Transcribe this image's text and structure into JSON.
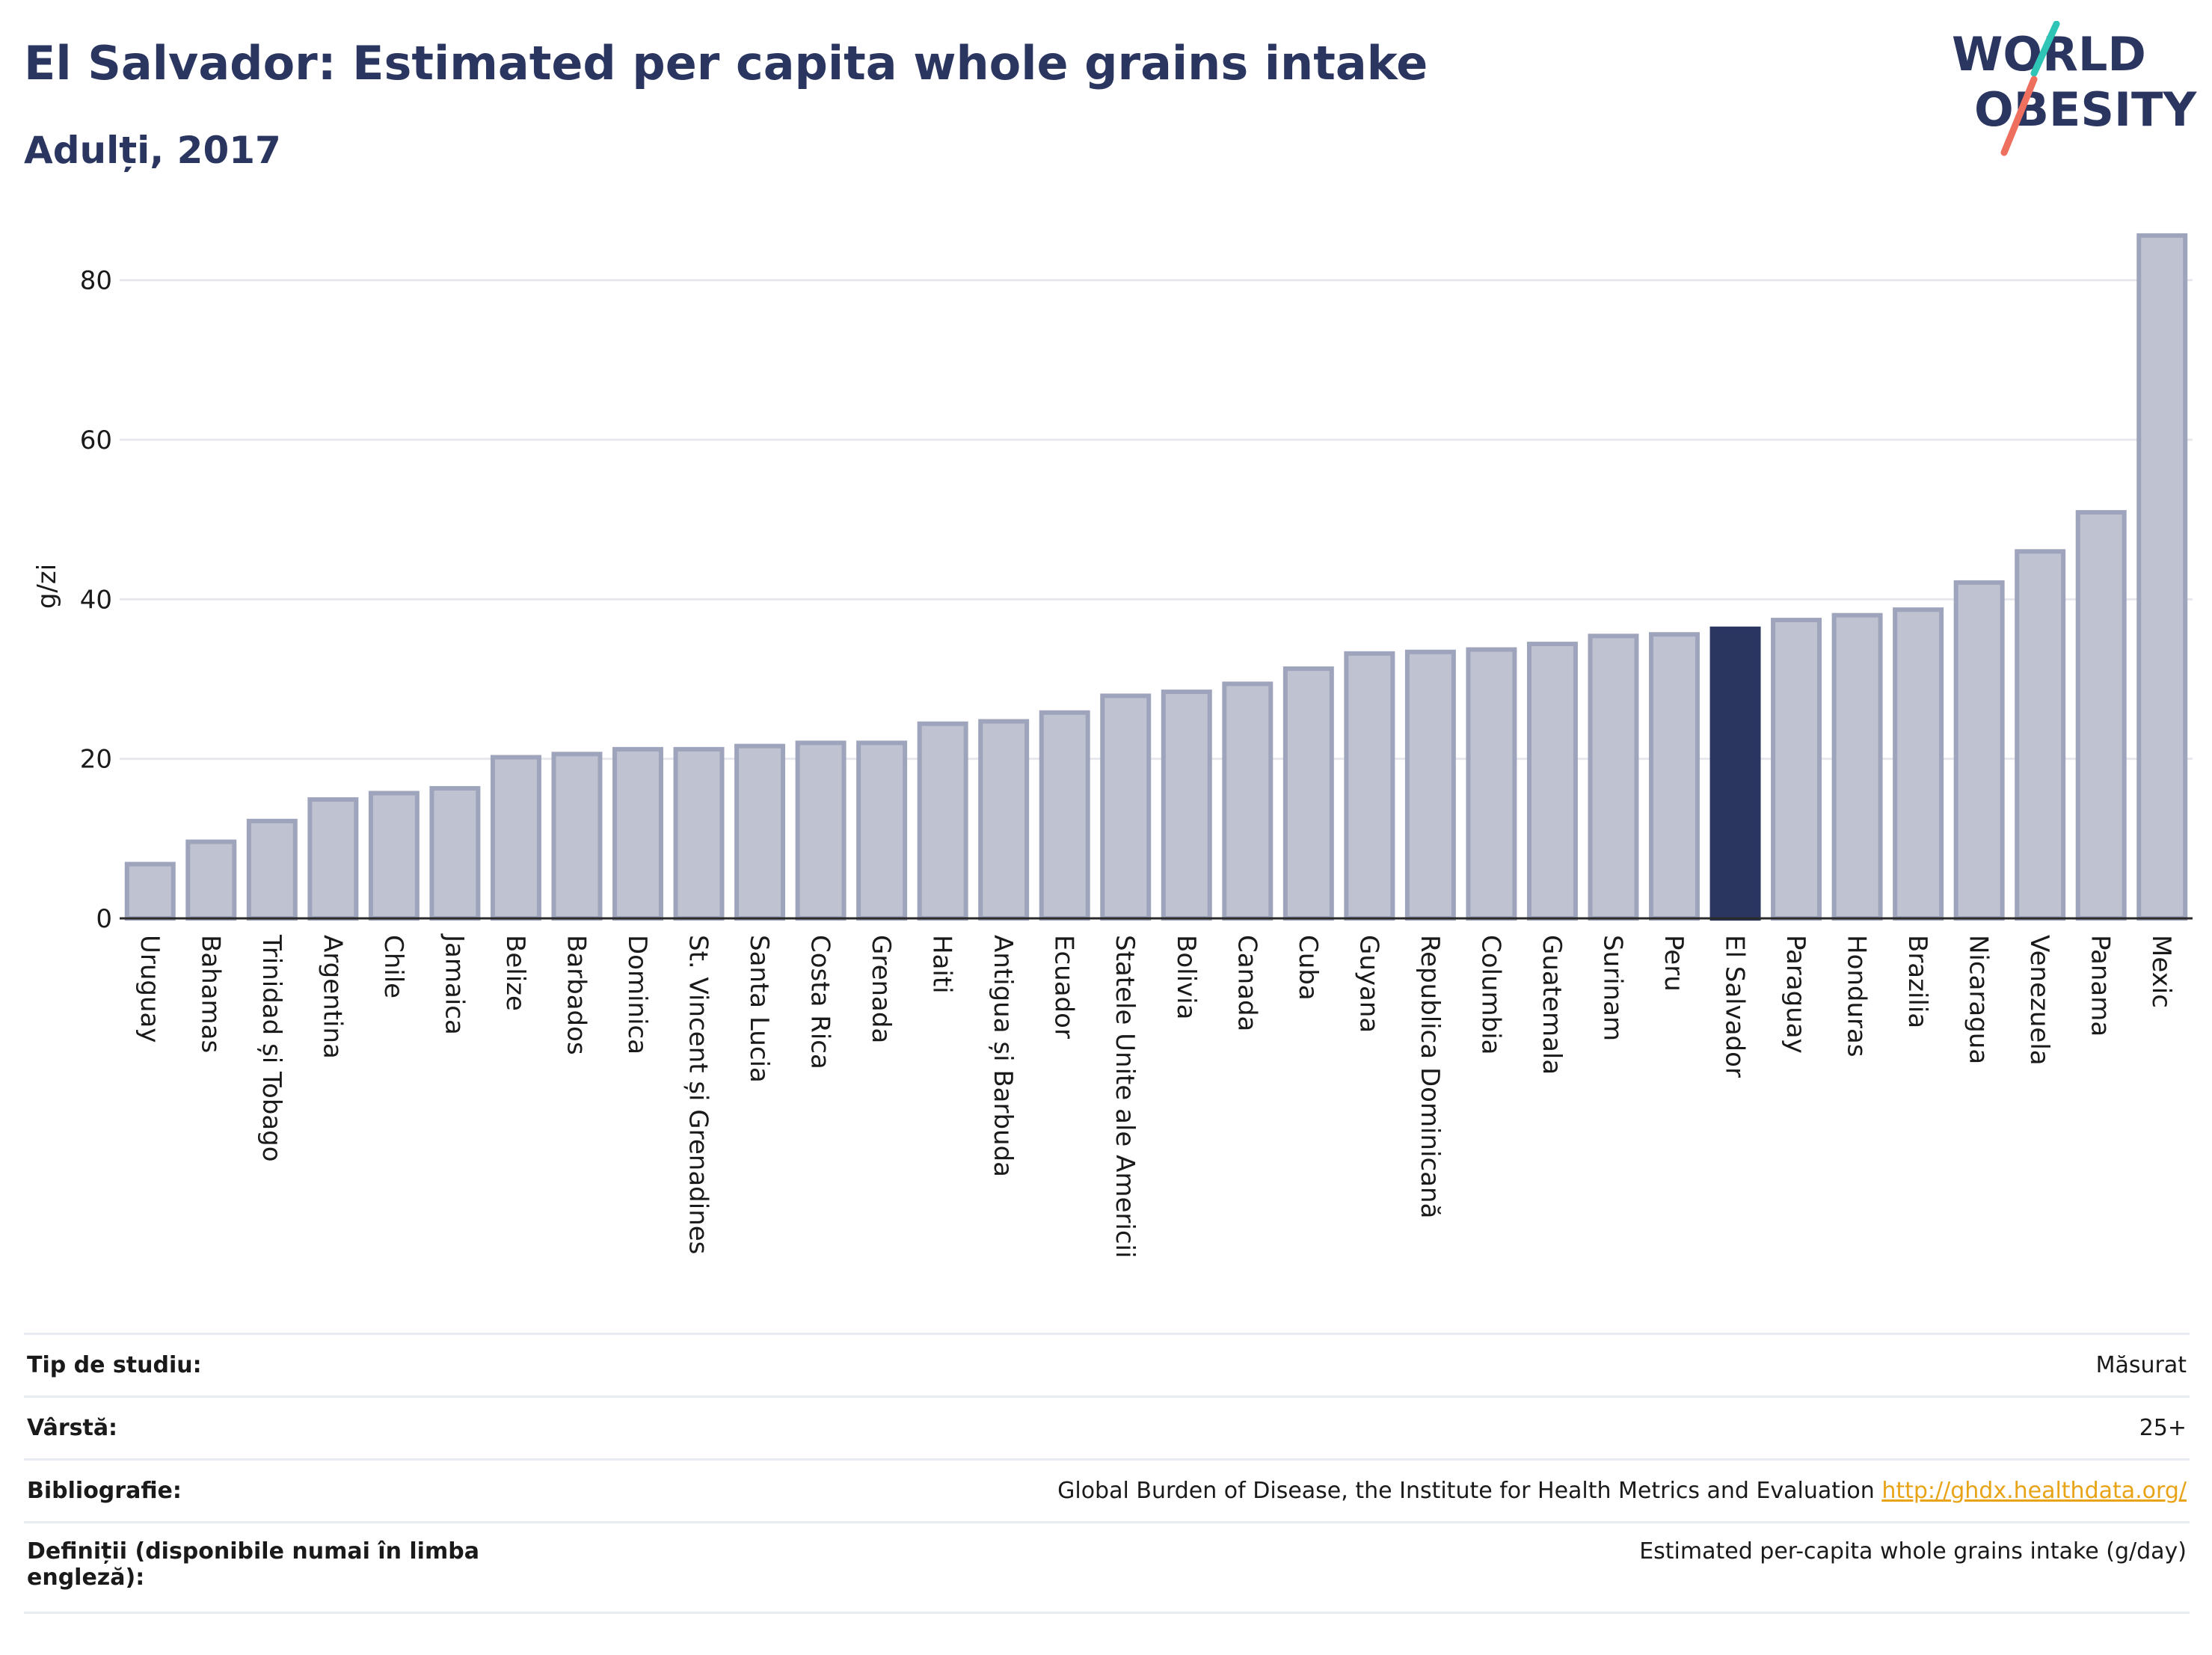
{
  "header": {
    "title": "El Salvador: Estimated per capita whole grains intake",
    "subtitle": "Adulți, 2017",
    "logo_line1": "WORLD",
    "logo_line2": "OBESITY"
  },
  "colors": {
    "title": "#2a3560",
    "bar": "#bfc3d1",
    "bar_stroke": "#9ea4bb",
    "highlight": "#2a3560",
    "grid": "#e6e8ee",
    "link": "#e8a317",
    "logo_teal": "#2ec4b6",
    "logo_coral": "#ef6f5e"
  },
  "chart_data": {
    "type": "bar",
    "title": "El Salvador: Estimated per capita whole grains intake",
    "subtitle": "Adulți, 2017",
    "ylabel": "g/zi",
    "xlabel": "",
    "ylim": [
      0,
      87
    ],
    "yticks": [
      0,
      20,
      40,
      60,
      80
    ],
    "grid": true,
    "highlight": "El Salvador",
    "categories": [
      "Uruguay",
      "Bahamas",
      "Trinidad și Tobago",
      "Argentina",
      "Chile",
      "Jamaica",
      "Belize",
      "Barbados",
      "Dominica",
      "St. Vincent și Grenadines",
      "Santa Lucia",
      "Costa Rica",
      "Grenada",
      "Haiti",
      "Antigua și Barbuda",
      "Ecuador",
      "Statele Unite ale Americii",
      "Bolivia",
      "Canada",
      "Cuba",
      "Guyana",
      "Republica Dominicană",
      "Columbia",
      "Guatemala",
      "Surinam",
      "Peru",
      "El Salvador",
      "Paraguay",
      "Honduras",
      "Brazilia",
      "Nicaragua",
      "Venezuela",
      "Panama",
      "Mexic"
    ],
    "values": [
      6.8,
      9.6,
      12.2,
      14.9,
      15.7,
      16.3,
      20.2,
      20.6,
      21.2,
      21.2,
      21.6,
      22.0,
      22.0,
      24.4,
      24.7,
      25.8,
      27.9,
      28.4,
      29.4,
      31.3,
      33.2,
      33.4,
      33.7,
      34.4,
      35.4,
      35.6,
      36.3,
      37.4,
      38.0,
      38.7,
      42.1,
      46.0,
      50.9,
      85.6
    ]
  },
  "info": {
    "rows": [
      {
        "label": "Tip de studiu:",
        "value": "Măsurat",
        "link": ""
      },
      {
        "label": "Vârstă:",
        "value": "25+",
        "link": ""
      },
      {
        "label": "Bibliografie:",
        "value": "Global Burden of Disease, the Institute for Health Metrics and Evaluation",
        "link": "http://ghdx.healthdata.org/"
      },
      {
        "label": "Definiții (disponibile numai în limba engleză):",
        "value": "Estimated per-capita whole grains intake (g/day)",
        "link": ""
      }
    ]
  }
}
